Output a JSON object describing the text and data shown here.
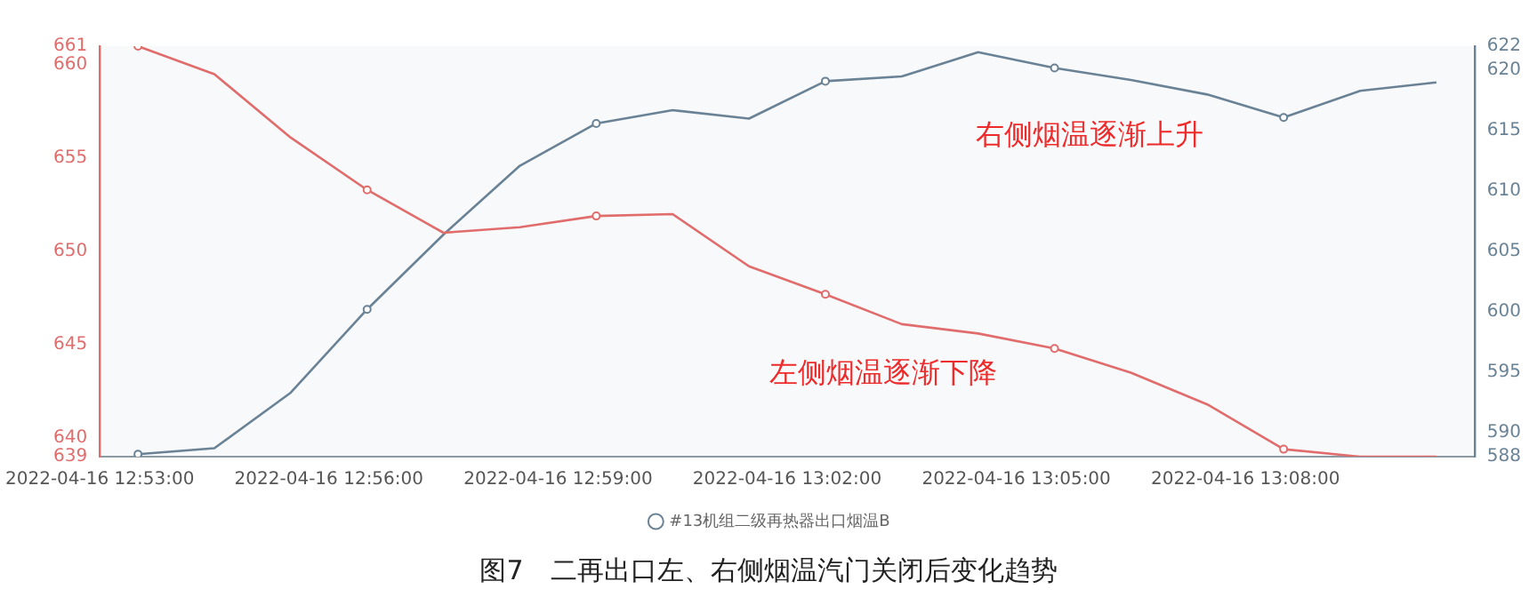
{
  "chart_data": {
    "type": "line",
    "title": "图7　二再出口左、右侧烟温汽门关闭后变化趋势",
    "x": [
      "2022-04-16T12:53:30",
      "2022-04-16T12:54:30",
      "2022-04-16T12:55:30",
      "2022-04-16T12:56:30",
      "2022-04-16T12:57:30",
      "2022-04-16T12:58:30",
      "2022-04-16T12:59:30",
      "2022-04-16T13:00:30",
      "2022-04-16T13:01:30",
      "2022-04-16T13:02:30",
      "2022-04-16T13:03:30",
      "2022-04-16T13:04:30",
      "2022-04-16T13:05:30",
      "2022-04-16T13:06:30",
      "2022-04-16T13:07:30",
      "2022-04-16T13:08:30",
      "2022-04-16T13:09:30",
      "2022-04-16T13:10:30"
    ],
    "series": [
      {
        "color": "#e06c6c",
        "axis": "y",
        "values": [
          661,
          659.5,
          656.1,
          653.3,
          651.0,
          651.3,
          651.9,
          652.0,
          649.2,
          647.7,
          646.1,
          645.6,
          644.8,
          643.5,
          641.8,
          639.4,
          639.0,
          639
        ]
      },
      {
        "name": "#13机组二级再热器出口烟温B",
        "color": "#6a8295",
        "axis": "y2",
        "values": [
          588.2,
          588.7,
          593.3,
          600.2,
          606.4,
          612.1,
          615.6,
          616.7,
          616.0,
          619.1,
          619.5,
          621.5,
          620.2,
          619.2,
          618.0,
          616.1,
          618.3,
          619.0
        ]
      }
    ],
    "xlim": [
      "2022-04-16T12:53:00",
      "2022-04-16T13:11:00"
    ],
    "xticks": [
      {
        "value": "2022-04-16T12:53:00",
        "label": "2022-04-16 12:53:00"
      },
      {
        "value": "2022-04-16T12:56:00",
        "label": "2022-04-16 12:56:00"
      },
      {
        "value": "2022-04-16T12:59:00",
        "label": "2022-04-16 12:59:00"
      },
      {
        "value": "2022-04-16T13:02:00",
        "label": "2022-04-16 13:02:00"
      },
      {
        "value": "2022-04-16T13:05:00",
        "label": "2022-04-16 13:05:00"
      },
      {
        "value": "2022-04-16T13:08:00",
        "label": "2022-04-16 13:08:00"
      }
    ],
    "ylim": [
      639,
      661
    ],
    "yticks": [
      639,
      640,
      645,
      650,
      655,
      660,
      661
    ],
    "y2lim": [
      588,
      622
    ],
    "y2ticks": [
      588,
      590,
      595,
      600,
      605,
      610,
      615,
      620,
      622
    ],
    "annotations": [
      "右侧烟温逐渐上升",
      "左侧烟温逐渐下降"
    ],
    "line_style": "solid",
    "grid": false,
    "legend": "bottom"
  }
}
